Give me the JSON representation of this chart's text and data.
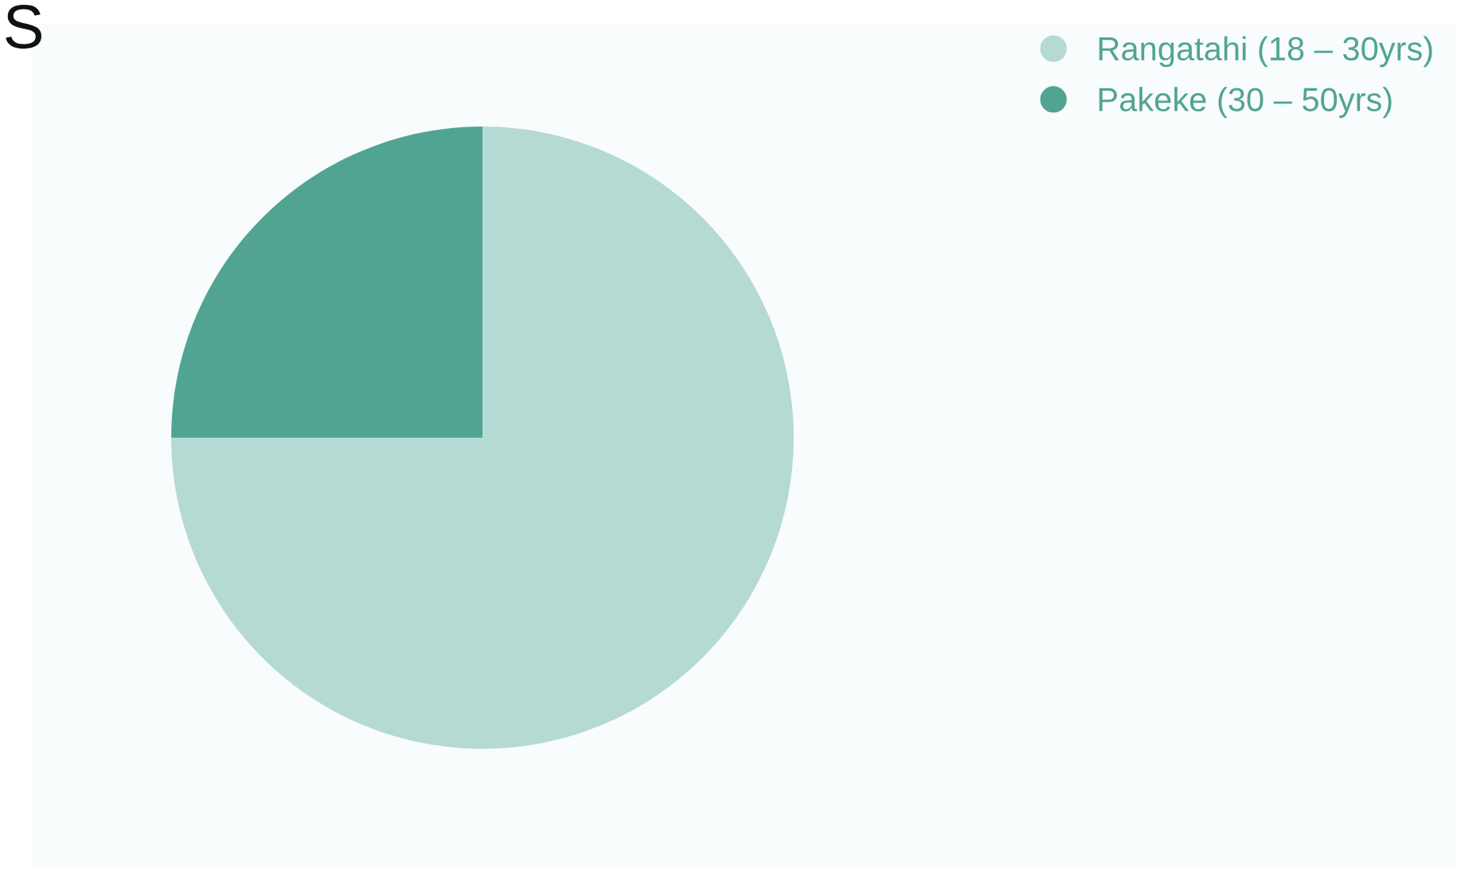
{
  "chart_data": {
    "type": "pie",
    "categories": [
      "Rangatahi (18 – 30yrs)",
      "Pakeke (30 – 50yrs)"
    ],
    "values": [
      75,
      25
    ],
    "colors": [
      "#b5d9d3",
      "#52a492"
    ],
    "annotations": [
      "S"
    ],
    "legend": "top right"
  }
}
